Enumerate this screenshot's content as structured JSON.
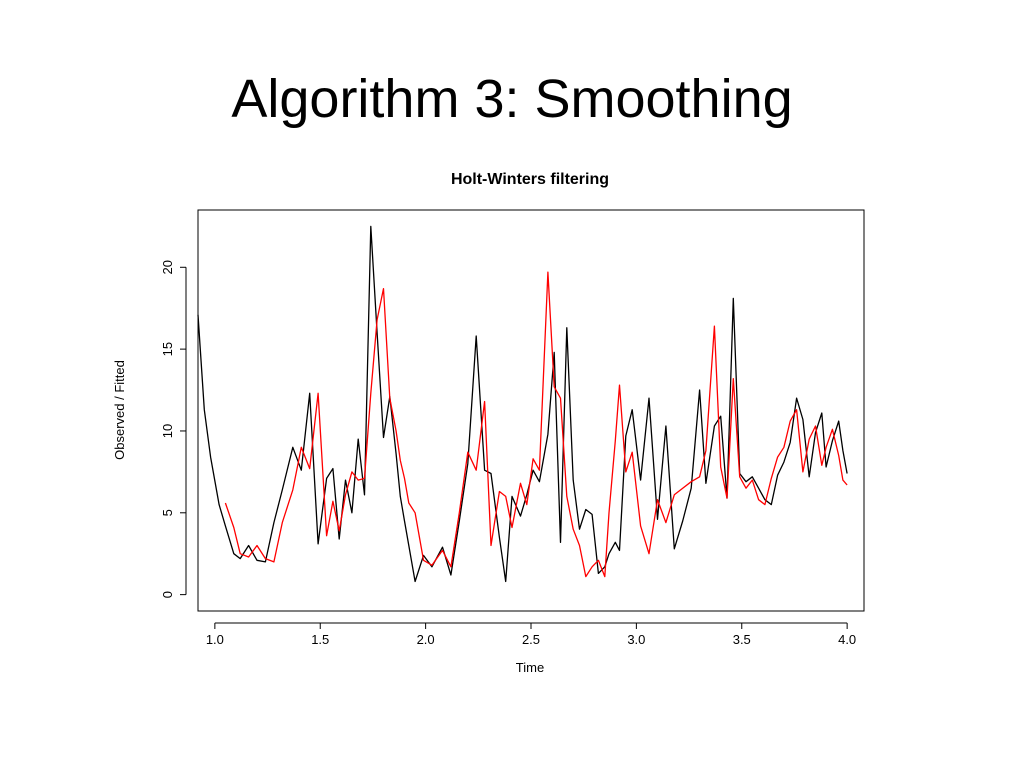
{
  "slide": {
    "title": "Algorithm 3: Smoothing"
  },
  "chart_data": {
    "type": "line",
    "title": "Holt-Winters filtering",
    "xlabel": "Time",
    "ylabel": "Observed / Fitted",
    "xlim": [
      0.92,
      4.08
    ],
    "ylim": [
      -1,
      23.5
    ],
    "xticks": [
      1.0,
      1.5,
      2.0,
      2.5,
      3.0,
      3.5,
      4.0
    ],
    "xtick_labels": [
      "1.0",
      "1.5",
      "2.0",
      "2.5",
      "3.0",
      "3.5",
      "4.0"
    ],
    "yticks": [
      0,
      5,
      10,
      15,
      20
    ],
    "ytick_labels": [
      "0",
      "5",
      "10",
      "15",
      "20"
    ],
    "grid": false,
    "legend": "none",
    "series": [
      {
        "color": "#000000",
        "x": [
          0.92,
          0.95,
          0.98,
          1.02,
          1.05,
          1.09,
          1.12,
          1.16,
          1.2,
          1.24,
          1.28,
          1.32,
          1.37,
          1.41,
          1.45,
          1.49,
          1.53,
          1.56,
          1.59,
          1.62,
          1.65,
          1.68,
          1.71,
          1.74,
          1.77,
          1.8,
          1.83,
          1.86,
          1.88,
          1.9,
          1.92,
          1.95,
          1.99,
          2.03,
          2.08,
          2.12,
          2.16,
          2.2,
          2.24,
          2.28,
          2.31,
          2.35,
          2.38,
          2.41,
          2.45,
          2.48,
          2.51,
          2.54,
          2.58,
          2.61,
          2.64,
          2.67,
          2.7,
          2.73,
          2.76,
          2.79,
          2.82,
          2.85,
          2.87,
          2.9,
          2.92,
          2.95,
          2.98,
          3.02,
          3.06,
          3.1,
          3.14,
          3.18,
          3.22,
          3.26,
          3.3,
          3.33,
          3.37,
          3.4,
          3.43,
          3.46,
          3.49,
          3.52,
          3.55,
          3.58,
          3.61,
          3.64,
          3.67,
          3.7,
          3.73,
          3.76,
          3.79,
          3.82,
          3.85,
          3.88,
          3.9,
          3.93,
          3.96,
          3.98,
          4.0
        ],
        "y": [
          17.1,
          11.3,
          8.4,
          5.5,
          4.2,
          2.5,
          2.2,
          3.0,
          2.1,
          2.0,
          4.4,
          6.4,
          9.0,
          7.6,
          12.3,
          3.1,
          7.1,
          7.7,
          3.4,
          7.0,
          5.0,
          9.5,
          6.1,
          22.5,
          16.0,
          9.6,
          12.1,
          8.6,
          6.0,
          4.5,
          3.0,
          0.8,
          2.4,
          1.7,
          2.9,
          1.2,
          4.5,
          8.0,
          15.8,
          7.6,
          7.4,
          3.5,
          0.8,
          6.0,
          4.8,
          6.1,
          7.6,
          6.9,
          9.8,
          14.8,
          3.2,
          16.3,
          7.0,
          4.0,
          5.2,
          4.9,
          1.3,
          1.7,
          2.5,
          3.2,
          2.7,
          9.7,
          11.3,
          7.0,
          12.0,
          4.6,
          10.3,
          2.8,
          4.5,
          6.5,
          12.5,
          6.8,
          10.3,
          10.9,
          5.9,
          18.1,
          7.4,
          6.9,
          7.2,
          6.5,
          5.8,
          5.5,
          7.3,
          8.1,
          9.3,
          12.0,
          10.7,
          7.2,
          9.9,
          11.1,
          7.8,
          9.4,
          10.6,
          8.8,
          7.4
        ]
      },
      {
        "color": "#ff0000",
        "x": [
          1.05,
          1.09,
          1.12,
          1.16,
          1.2,
          1.24,
          1.28,
          1.32,
          1.37,
          1.41,
          1.45,
          1.49,
          1.53,
          1.56,
          1.59,
          1.62,
          1.65,
          1.68,
          1.71,
          1.74,
          1.77,
          1.8,
          1.83,
          1.86,
          1.88,
          1.9,
          1.92,
          1.95,
          1.99,
          2.03,
          2.08,
          2.12,
          2.16,
          2.2,
          2.24,
          2.28,
          2.31,
          2.35,
          2.38,
          2.41,
          2.45,
          2.48,
          2.51,
          2.54,
          2.58,
          2.61,
          2.64,
          2.67,
          2.7,
          2.73,
          2.76,
          2.79,
          2.82,
          2.85,
          2.87,
          2.9,
          2.92,
          2.95,
          2.98,
          3.02,
          3.06,
          3.1,
          3.14,
          3.18,
          3.22,
          3.26,
          3.3,
          3.33,
          3.37,
          3.4,
          3.43,
          3.46,
          3.49,
          3.52,
          3.55,
          3.58,
          3.61,
          3.64,
          3.67,
          3.7,
          3.73,
          3.76,
          3.79,
          3.82,
          3.85,
          3.88,
          3.9,
          3.93,
          3.96,
          3.98,
          4.0
        ],
        "y": [
          5.6,
          4.1,
          2.5,
          2.3,
          3.0,
          2.2,
          2.0,
          4.4,
          6.4,
          9.0,
          7.7,
          12.3,
          3.6,
          5.7,
          3.9,
          6.1,
          7.5,
          7.0,
          7.1,
          12.3,
          16.8,
          18.7,
          12.0,
          10.0,
          8.2,
          7.1,
          5.6,
          5.0,
          2.1,
          1.8,
          2.7,
          1.7,
          5.0,
          8.7,
          7.6,
          11.8,
          3.0,
          6.3,
          6.0,
          4.1,
          6.8,
          5.5,
          8.3,
          7.6,
          19.7,
          12.7,
          12.0,
          6.0,
          4.0,
          3.0,
          1.1,
          1.7,
          2.1,
          1.1,
          5.0,
          9.4,
          12.8,
          7.5,
          8.7,
          4.2,
          2.5,
          5.8,
          4.4,
          6.1,
          6.5,
          6.9,
          7.2,
          8.8,
          16.4,
          7.8,
          5.9,
          13.2,
          7.2,
          6.5,
          7.0,
          5.8,
          5.5,
          7.1,
          8.4,
          9.0,
          10.6,
          11.3,
          7.5,
          9.5,
          10.3,
          7.9,
          9.0,
          10.1,
          8.5,
          7.0,
          6.7
        ]
      }
    ]
  }
}
